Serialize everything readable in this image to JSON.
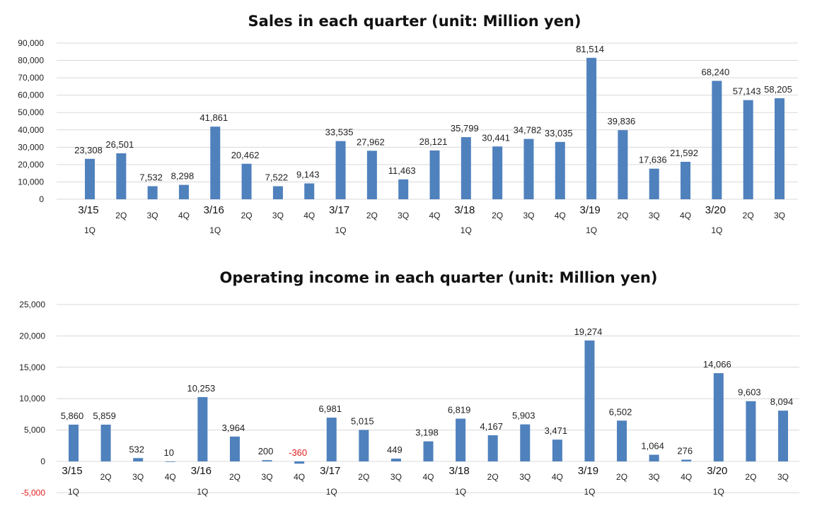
{
  "chart_data": [
    {
      "type": "bar",
      "title": "Sales in each quarter (unit: Million yen)",
      "xlabel": "",
      "ylabel": "",
      "ylim": [
        0,
        90000
      ],
      "ytick_labels": [
        "0",
        "10,000",
        "20,000",
        "30,000",
        "40,000",
        "50,000",
        "60,000",
        "70,000",
        "80,000",
        "90,000"
      ],
      "grid": true,
      "legend": "none",
      "color": "#4f81bd",
      "categories": [
        {
          "year": "3/15",
          "quarter": "1Q"
        },
        {
          "year": "",
          "quarter": "2Q"
        },
        {
          "year": "",
          "quarter": "3Q"
        },
        {
          "year": "",
          "quarter": "4Q"
        },
        {
          "year": "3/16",
          "quarter": "1Q"
        },
        {
          "year": "",
          "quarter": "2Q"
        },
        {
          "year": "",
          "quarter": "3Q"
        },
        {
          "year": "",
          "quarter": "4Q"
        },
        {
          "year": "3/17",
          "quarter": "1Q"
        },
        {
          "year": "",
          "quarter": "2Q"
        },
        {
          "year": "",
          "quarter": "3Q"
        },
        {
          "year": "",
          "quarter": "4Q"
        },
        {
          "year": "3/18",
          "quarter": "1Q"
        },
        {
          "year": "",
          "quarter": "2Q"
        },
        {
          "year": "",
          "quarter": "3Q"
        },
        {
          "year": "",
          "quarter": "4Q"
        },
        {
          "year": "3/19",
          "quarter": "1Q"
        },
        {
          "year": "",
          "quarter": "2Q"
        },
        {
          "year": "",
          "quarter": "3Q"
        },
        {
          "year": "",
          "quarter": "4Q"
        },
        {
          "year": "3/20",
          "quarter": "1Q"
        },
        {
          "year": "",
          "quarter": "2Q"
        },
        {
          "year": "",
          "quarter": "3Q"
        }
      ],
      "values": [
        23308,
        26501,
        7532,
        8298,
        41861,
        20462,
        7522,
        9143,
        33535,
        27962,
        11463,
        28121,
        35799,
        30441,
        34782,
        33035,
        81514,
        39836,
        17636,
        21592,
        68240,
        57143,
        58205
      ],
      "value_labels": [
        "23,308",
        "26,501",
        "7,532",
        "8,298",
        "41,861",
        "20,462",
        "7,522",
        "9,143",
        "33,535",
        "27,962",
        "11,463",
        "28,121",
        "35,799",
        "30,441",
        "34,782",
        "33,035",
        "81,514",
        "39,836",
        "17,636",
        "21,592",
        "68,240",
        "57,143",
        "58,205"
      ]
    },
    {
      "type": "bar",
      "title": "Operating income in each quarter (unit: Million yen)",
      "xlabel": "",
      "ylabel": "",
      "ylim": [
        -5000,
        25000
      ],
      "ytick_labels": [
        "-5,000",
        "0",
        "5,000",
        "10,000",
        "15,000",
        "20,000",
        "25,000"
      ],
      "grid": true,
      "legend": "none",
      "color": "#4f81bd",
      "negative_color": "#e02020",
      "categories": [
        {
          "year": "3/15",
          "quarter": "1Q"
        },
        {
          "year": "",
          "quarter": "2Q"
        },
        {
          "year": "",
          "quarter": "3Q"
        },
        {
          "year": "",
          "quarter": "4Q"
        },
        {
          "year": "3/16",
          "quarter": "1Q"
        },
        {
          "year": "",
          "quarter": "2Q"
        },
        {
          "year": "",
          "quarter": "3Q"
        },
        {
          "year": "",
          "quarter": "4Q"
        },
        {
          "year": "3/17",
          "quarter": "1Q"
        },
        {
          "year": "",
          "quarter": "2Q"
        },
        {
          "year": "",
          "quarter": "3Q"
        },
        {
          "year": "",
          "quarter": "4Q"
        },
        {
          "year": "3/18",
          "quarter": "1Q"
        },
        {
          "year": "",
          "quarter": "2Q"
        },
        {
          "year": "",
          "quarter": "3Q"
        },
        {
          "year": "",
          "quarter": "4Q"
        },
        {
          "year": "3/19",
          "quarter": "1Q"
        },
        {
          "year": "",
          "quarter": "2Q"
        },
        {
          "year": "",
          "quarter": "3Q"
        },
        {
          "year": "",
          "quarter": "4Q"
        },
        {
          "year": "3/20",
          "quarter": "1Q"
        },
        {
          "year": "",
          "quarter": "2Q"
        },
        {
          "year": "",
          "quarter": "3Q"
        }
      ],
      "values": [
        5860,
        5859,
        532,
        10,
        10253,
        3964,
        200,
        -360,
        6981,
        5015,
        449,
        3198,
        6819,
        4167,
        5903,
        3471,
        19274,
        6502,
        1064,
        276,
        14066,
        9603,
        8094
      ],
      "value_labels": [
        "5,860",
        "5,859",
        "532",
        "10",
        "10,253",
        "3,964",
        "200",
        "-360",
        "6,981",
        "5,015",
        "449",
        "3,198",
        "6,819",
        "4,167",
        "5,903",
        "3,471",
        "19,274",
        "6,502",
        "1,064",
        "276",
        "14,066",
        "9,603",
        "8,094"
      ]
    }
  ]
}
